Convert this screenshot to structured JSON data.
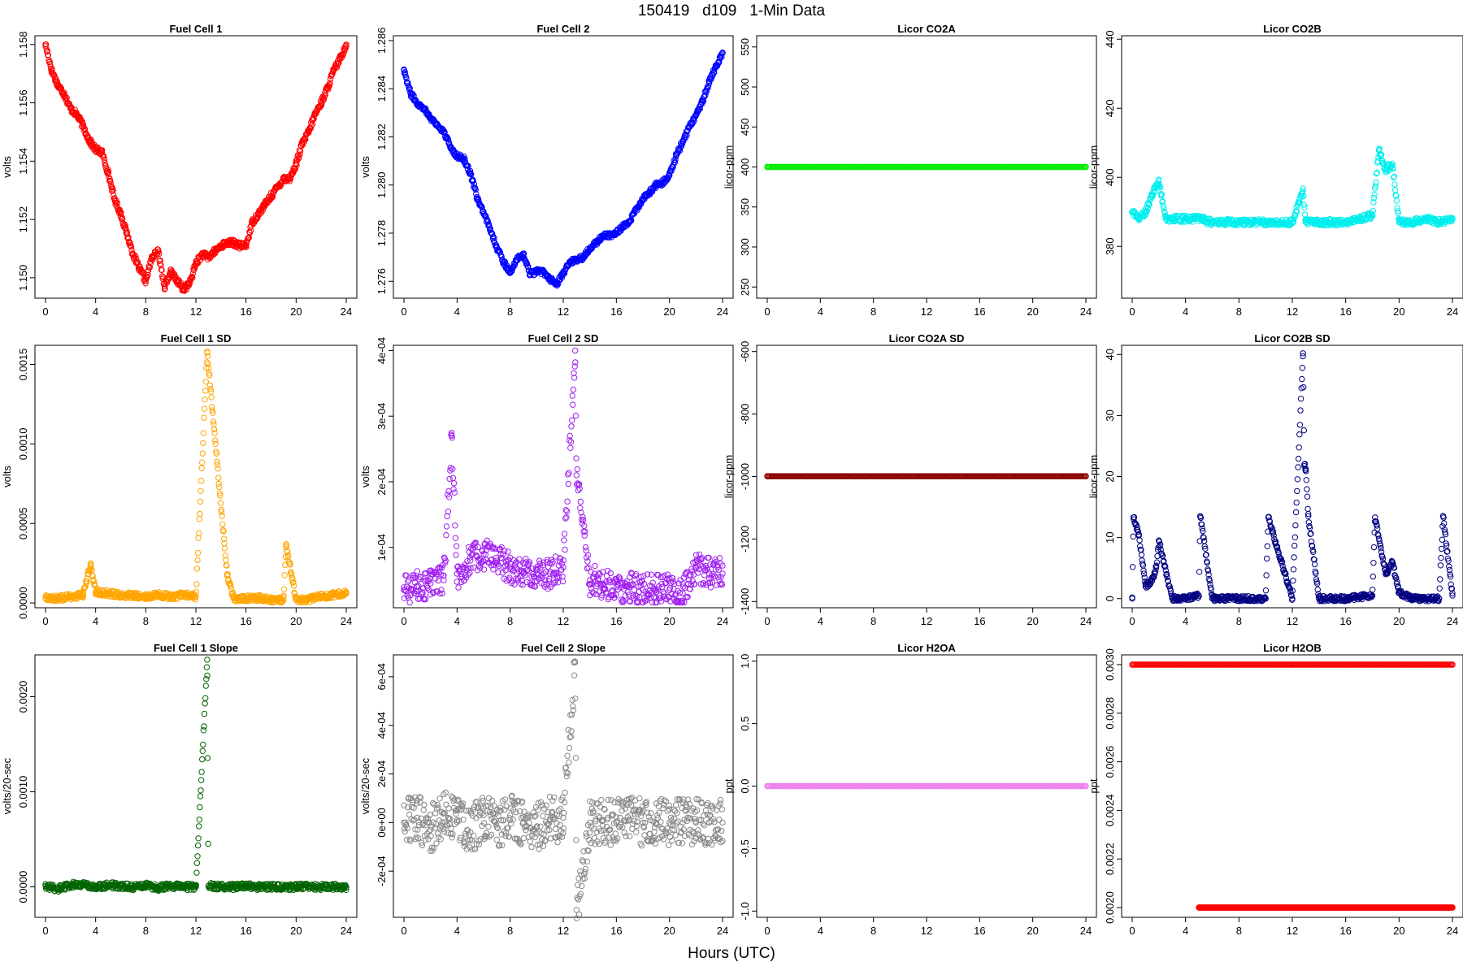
{
  "page": {
    "title": "150419   d109   1-Min Data",
    "xlabel": "Hours (UTC)"
  },
  "chart_data": [
    {
      "type": "scatter",
      "title": "Fuel Cell 1",
      "ylabel": "volts",
      "color": "#ff0000",
      "xlim": [
        0,
        24
      ],
      "ylim": [
        1.1493,
        1.1583
      ],
      "xticks": [
        0,
        4,
        8,
        12,
        16,
        20,
        24
      ],
      "yticks": [
        1.15,
        1.152,
        1.154,
        1.156,
        1.158
      ],
      "ytick_labels": [
        "1.150",
        "1.152",
        "1.154",
        "1.156",
        "1.158"
      ],
      "series": [
        {
          "x": [
            0,
            0.5,
            1,
            1.5,
            2,
            2.5,
            3,
            3.5,
            4,
            4.5,
            5,
            5.5,
            6,
            6.5,
            7,
            7.5,
            8,
            8.5,
            9,
            9.5,
            10,
            10.5,
            11,
            11.5,
            12,
            12.5,
            13,
            13.5,
            14,
            14.5,
            15,
            15.5,
            16,
            16.5,
            17,
            17.5,
            18,
            18.5,
            19,
            19.5,
            20,
            20.5,
            21,
            21.5,
            22,
            22.5,
            23,
            23.5,
            24
          ],
          "y": [
            1.158,
            1.1571,
            1.1566,
            1.1563,
            1.1558,
            1.1556,
            1.1552,
            1.1547,
            1.1544,
            1.1543,
            1.1536,
            1.1527,
            1.1522,
            1.1515,
            1.1508,
            1.1503,
            1.1499,
            1.1507,
            1.1509,
            1.1497,
            1.1502,
            1.1499,
            1.1496,
            1.1498,
            1.1505,
            1.1508,
            1.1507,
            1.1509,
            1.1511,
            1.1512,
            1.1512,
            1.1511,
            1.1511,
            1.1519,
            1.1522,
            1.1525,
            1.1528,
            1.1531,
            1.1534,
            1.1534,
            1.1539,
            1.1546,
            1.155,
            1.1556,
            1.156,
            1.1565,
            1.1571,
            1.1575,
            1.158
          ]
        }
      ]
    },
    {
      "type": "scatter",
      "title": "Fuel Cell 2",
      "ylabel": "volts",
      "color": "#0000ff",
      "xlim": [
        0,
        24
      ],
      "ylim": [
        1.2753,
        1.2862
      ],
      "xticks": [
        0,
        4,
        8,
        12,
        16,
        20,
        24
      ],
      "yticks": [
        1.276,
        1.278,
        1.28,
        1.282,
        1.284,
        1.286
      ],
      "ytick_labels": [
        "1.276",
        "1.278",
        "1.280",
        "1.282",
        "1.284",
        "1.286"
      ],
      "series": [
        {
          "x": [
            0,
            0.5,
            1,
            1.5,
            2,
            2.5,
            3,
            3.5,
            4,
            4.5,
            5,
            5.5,
            6,
            6.5,
            7,
            7.5,
            8,
            8.5,
            9,
            9.5,
            10,
            10.5,
            11,
            11.5,
            12,
            12.5,
            13,
            13.5,
            14,
            14.5,
            15,
            15.5,
            16,
            16.5,
            17,
            17.5,
            18,
            18.5,
            19,
            19.5,
            20,
            20.5,
            21,
            21.5,
            22,
            22.5,
            23,
            23.5,
            24
          ],
          "y": [
            1.2848,
            1.2838,
            1.2834,
            1.2832,
            1.2828,
            1.2825,
            1.2822,
            1.2816,
            1.2812,
            1.2811,
            1.2805,
            1.2795,
            1.2788,
            1.2782,
            1.2774,
            1.2768,
            1.2764,
            1.2769,
            1.2771,
            1.2763,
            1.2764,
            1.2764,
            1.2761,
            1.2759,
            1.2763,
            1.2768,
            1.2769,
            1.277,
            1.2774,
            1.2776,
            1.2779,
            1.2779,
            1.278,
            1.2783,
            1.2785,
            1.279,
            1.2794,
            1.2797,
            1.28,
            1.2801,
            1.2804,
            1.2812,
            1.2818,
            1.2824,
            1.2829,
            1.2835,
            1.2843,
            1.2849,
            1.2855
          ]
        }
      ]
    },
    {
      "type": "scatter",
      "title": "Licor CO2A",
      "ylabel": "licor-ppm",
      "color": "#00ee00",
      "xlim": [
        0,
        24
      ],
      "ylim": [
        236,
        564
      ],
      "xticks": [
        0,
        4,
        8,
        12,
        16,
        20,
        24
      ],
      "yticks": [
        250,
        300,
        350,
        400,
        450,
        500,
        550
      ],
      "ytick_labels": [
        "250",
        "300",
        "350",
        "400",
        "450",
        "500",
        "550"
      ],
      "series": [
        {
          "x": [
            0,
            24
          ],
          "y": [
            400,
            400
          ]
        }
      ]
    },
    {
      "type": "scatter",
      "title": "Licor CO2B",
      "ylabel": "licor-ppm",
      "color": "#00eeee",
      "xlim": [
        0,
        24
      ],
      "ylim": [
        365,
        441
      ],
      "xticks": [
        0,
        4,
        8,
        12,
        16,
        20,
        24
      ],
      "yticks": [
        380,
        400,
        420,
        440
      ],
      "ytick_labels": [
        "380",
        "400",
        "420",
        "440"
      ],
      "series": [
        {
          "x": [
            0,
            0.5,
            1,
            1.5,
            2,
            2.5,
            3,
            4,
            5,
            6,
            7,
            8,
            9,
            10,
            11,
            12,
            12.8,
            13,
            14,
            15,
            16,
            17,
            18,
            18.5,
            19,
            19.5,
            20,
            21,
            22,
            23,
            24
          ],
          "y": [
            390,
            388,
            390,
            395,
            399,
            388,
            388,
            388,
            388,
            387,
            387,
            387,
            387,
            387,
            387,
            387,
            396,
            387,
            387,
            387,
            387,
            388,
            389,
            408,
            402,
            404,
            387,
            387,
            388,
            387,
            388
          ]
        }
      ]
    },
    {
      "type": "scatter",
      "title": "Fuel Cell 1 SD",
      "ylabel": "volts",
      "color": "#ffa500",
      "xlim": [
        0,
        24
      ],
      "ylim": [
        -3e-05,
        0.00162
      ],
      "xticks": [
        0,
        4,
        8,
        12,
        16,
        20,
        24
      ],
      "yticks": [
        0,
        0.0005,
        0.001,
        0.0015
      ],
      "ytick_labels": [
        "0.0000",
        "0.0005",
        "0.0010",
        "0.0015"
      ],
      "series": [
        {
          "x": [
            0,
            1,
            2,
            3,
            3.6,
            4,
            5,
            6,
            7,
            8,
            9,
            10,
            11,
            12,
            12.9,
            14.5,
            15,
            16,
            17,
            18,
            19,
            19.2,
            20,
            21,
            22,
            23,
            24
          ],
          "y": [
            3e-05,
            3e-05,
            4e-05,
            5e-05,
            0.00025,
            7e-05,
            6e-05,
            5e-05,
            5e-05,
            4e-05,
            5e-05,
            4e-05,
            5e-05,
            4e-05,
            0.00158,
            0.00018,
            3e-05,
            3e-05,
            3e-05,
            2e-05,
            2e-05,
            0.00037,
            2e-05,
            2e-05,
            4e-05,
            5e-05,
            6e-05
          ]
        }
      ]
    },
    {
      "type": "scatter",
      "title": "Fuel Cell 2 SD",
      "ylabel": "volts",
      "color": "#a020f0",
      "xlim": [
        0,
        24
      ],
      "ylim": [
        8e-06,
        0.000408
      ],
      "xticks": [
        0,
        4,
        8,
        12,
        16,
        20,
        24
      ],
      "yticks": [
        0.0001,
        0.0002,
        0.0003,
        0.0004
      ],
      "ytick_labels": [
        "1e-04",
        "2e-04",
        "3e-04",
        "4e-04"
      ],
      "series": [
        {
          "x": [
            0,
            1,
            2,
            3,
            3.6,
            4,
            5,
            6,
            7,
            8,
            9,
            10,
            11,
            12,
            12.9,
            13,
            14,
            15,
            16,
            17,
            18,
            19,
            20,
            21,
            22,
            23,
            24
          ],
          "y": [
            3.5e-05,
            4e-05,
            4.5e-05,
            5e-05,
            0.00027,
            6e-05,
            8e-05,
            9e-05,
            8e-05,
            7e-05,
            6e-05,
            6e-05,
            6e-05,
            7e-05,
            0.0004,
            0.00021,
            5e-05,
            4.5e-05,
            4e-05,
            4e-05,
            3.5e-05,
            3.5e-05,
            3.5e-05,
            3e-05,
            7e-05,
            6e-05,
            6e-05
          ]
        }
      ]
    },
    {
      "type": "scatter",
      "title": "Licor CO2A SD",
      "ylabel": "licor-ppm",
      "color": "#8b0000",
      "xlim": [
        0,
        24
      ],
      "ylim": [
        -1420,
        -580
      ],
      "xticks": [
        0,
        4,
        8,
        12,
        16,
        20,
        24
      ],
      "yticks": [
        -1400,
        -1200,
        -1000,
        -800,
        -600
      ],
      "ytick_labels": [
        "-1400",
        "-1200",
        "-1000",
        "-800",
        "-600"
      ],
      "series": [
        {
          "x": [
            0,
            24
          ],
          "y": [
            -999,
            -999
          ]
        }
      ]
    },
    {
      "type": "scatter",
      "title": "Licor CO2B SD",
      "ylabel": "licor-ppm",
      "color": "#000080",
      "xlim": [
        0,
        24
      ],
      "ylim": [
        -1.5,
        41.5
      ],
      "xticks": [
        0,
        4,
        8,
        12,
        16,
        20,
        24
      ],
      "yticks": [
        0,
        10,
        20,
        30,
        40
      ],
      "ytick_labels": [
        "0",
        "10",
        "20",
        "30",
        "40"
      ],
      "series": [
        {
          "x": [
            0,
            0.1,
            0.5,
            1,
            1.5,
            1.8,
            2,
            3,
            4,
            5,
            5.1,
            6,
            8,
            10,
            10.2,
            12,
            12.8,
            12.9,
            13,
            13.2,
            14,
            16,
            18,
            18.2,
            19,
            19.5,
            20,
            21,
            22,
            23,
            23.3,
            24
          ],
          "y": [
            0,
            13.3,
            10.5,
            2,
            3,
            5,
            9.5,
            0,
            0,
            0.5,
            13.5,
            0,
            0,
            0,
            13.3,
            0,
            40.2,
            22,
            21.3,
            13.5,
            0,
            0,
            0.5,
            13.3,
            4,
            6,
            1,
            0,
            0,
            0,
            13.5,
            0.5
          ]
        }
      ]
    },
    {
      "type": "scatter",
      "title": "Fuel Cell 1 Slope",
      "ylabel": "volts/20-sec",
      "color": "#006400",
      "xlim": [
        0,
        24
      ],
      "ylim": [
        -0.00032,
        0.00244
      ],
      "xticks": [
        0,
        4,
        8,
        12,
        16,
        20,
        24
      ],
      "yticks": [
        0,
        0.001,
        0.002
      ],
      "ytick_labels": [
        "0.0000",
        "0.0010",
        "0.0020"
      ],
      "series": [
        {
          "x": [
            0,
            1,
            2,
            3,
            4,
            5,
            6,
            7,
            8,
            9,
            10,
            11,
            12,
            12.9,
            13,
            14,
            15,
            16,
            17,
            18,
            19,
            20,
            21,
            22,
            23,
            24
          ],
          "y": [
            1e-05,
            -2e-05,
            2e-05,
            3e-05,
            -1e-05,
            2e-05,
            1e-05,
            0,
            2e-05,
            -1e-05,
            1e-05,
            0,
            0,
            0.00239,
            1e-05,
            0,
            0,
            1e-05,
            0,
            0,
            0,
            0,
            0,
            0,
            0,
            0
          ]
        }
      ]
    },
    {
      "type": "scatter",
      "title": "Fuel Cell 2 Slope",
      "ylabel": "volts/20-sec",
      "color": "#888888",
      "xlim": [
        0,
        24
      ],
      "ylim": [
        -0.00039,
        0.00069
      ],
      "xticks": [
        0,
        4,
        8,
        12,
        16,
        20,
        24
      ],
      "yticks": [
        -0.0002,
        0,
        0.0002,
        0.0004,
        0.0006
      ],
      "ytick_labels": [
        "-2e-04",
        "0e+00",
        "2e-04",
        "4e-04",
        "6e-04"
      ],
      "series": [
        {
          "x": [
            0,
            1,
            2,
            3,
            4,
            5,
            6,
            7,
            8,
            9,
            10,
            11,
            12,
            12.9,
            13,
            14,
            15,
            16,
            17,
            18,
            19,
            20,
            21,
            22,
            23,
            24
          ],
          "y": [
            0,
            2e-05,
            -3e-05,
            4e-05,
            1e-05,
            -4e-05,
            3e-05,
            -2e-05,
            3e-05,
            0,
            -2e-05,
            1e-05,
            2e-05,
            0.00066,
            -0.00036,
            0,
            1e-05,
            0,
            1e-05,
            0,
            0,
            0,
            0,
            0,
            0,
            0
          ]
        }
      ]
    },
    {
      "type": "scatter",
      "title": "Licor H2OA",
      "ylabel": "ppt",
      "color": "#ee82ee",
      "xlim": [
        0,
        24
      ],
      "ylim": [
        -1.05,
        1.05
      ],
      "xticks": [
        0,
        4,
        8,
        12,
        16,
        20,
        24
      ],
      "yticks": [
        -1,
        -0.5,
        0,
        0.5,
        1
      ],
      "ytick_labels": [
        "-1.0",
        "-0.5",
        "0.0",
        "0.5",
        "1.0"
      ],
      "series": [
        {
          "x": [
            0,
            24
          ],
          "y": [
            0,
            0
          ]
        }
      ]
    },
    {
      "type": "scatter",
      "title": "Licor H2OB",
      "ylabel": "ppt",
      "color": "#ff0000",
      "xlim": [
        0,
        24
      ],
      "ylim": [
        0.00196,
        0.00304
      ],
      "xticks": [
        0,
        4,
        8,
        12,
        16,
        20,
        24
      ],
      "yticks": [
        0.002,
        0.0022,
        0.0024,
        0.0026,
        0.0028,
        0.003
      ],
      "ytick_labels": [
        "0.0020",
        "0.0022",
        "0.0024",
        "0.0026",
        "0.0028",
        "0.0030"
      ],
      "series": [
        {
          "x": [
            0,
            24
          ],
          "y": [
            0.003,
            0.003
          ]
        },
        {
          "x": [
            5,
            5.5,
            6,
            6.5,
            7.5,
            8,
            8.5,
            9,
            9.5,
            10,
            10.5,
            11,
            11.5,
            12,
            12.5,
            13,
            13.5,
            14,
            14.5,
            15,
            16,
            16.5,
            17,
            17.5,
            18,
            18.5,
            19,
            19.5,
            20,
            20.5,
            21,
            22,
            22.5,
            23,
            23.5,
            24
          ],
          "y": [
            0.002,
            0.002,
            0.002,
            0.002,
            0.002,
            0.002,
            0.002,
            0.002,
            0.002,
            0.002,
            0.002,
            0.002,
            0.002,
            0.002,
            0.002,
            0.002,
            0.002,
            0.002,
            0.002,
            0.002,
            0.002,
            0.002,
            0.002,
            0.002,
            0.002,
            0.002,
            0.002,
            0.002,
            0.002,
            0.002,
            0.002,
            0.002,
            0.002,
            0.002,
            0.002,
            0.002
          ]
        }
      ]
    }
  ]
}
